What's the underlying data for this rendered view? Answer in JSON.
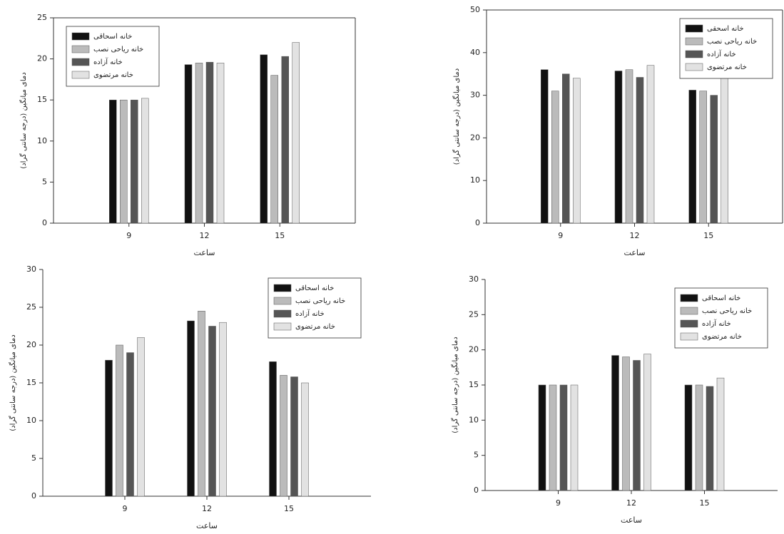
{
  "chart_data": [
    {
      "type": "bar",
      "categories": [
        "9",
        "12",
        "15"
      ],
      "series": [
        {
          "name": "خانه اسحاقی",
          "color": "#111111",
          "values": [
            15,
            19.3,
            20.5
          ]
        },
        {
          "name": "خانه ریاحی نصب",
          "color": "#bbbbbb",
          "values": [
            15,
            19.5,
            18
          ]
        },
        {
          "name": "خانه آزاده",
          "color": "#555555",
          "values": [
            15,
            19.6,
            20.3
          ]
        },
        {
          "name": "خانه مرتضوی",
          "color": "#e2e2e2",
          "values": [
            15.2,
            19.5,
            22
          ]
        }
      ],
      "ylim": [
        0,
        25
      ],
      "yticks": [
        0,
        5,
        10,
        15,
        20,
        25
      ],
      "xlabel": "ساعت",
      "ylabel": "دمای میانگین (درجه سانتی گراد)",
      "legend": "upper left"
    },
    {
      "type": "bar",
      "categories": [
        "9",
        "12",
        "15"
      ],
      "series": [
        {
          "name": "خانه اسحقی",
          "color": "#111111",
          "values": [
            36,
            35.7,
            31.2
          ]
        },
        {
          "name": "خانه ریاحی نصب",
          "color": "#bbbbbb",
          "values": [
            31,
            36,
            31
          ]
        },
        {
          "name": "خانه آزاده",
          "color": "#555555",
          "values": [
            35,
            34.2,
            30
          ]
        },
        {
          "name": "خانه مرتضوی",
          "color": "#e2e2e2",
          "values": [
            34,
            37,
            34
          ]
        }
      ],
      "ylim": [
        0,
        50
      ],
      "yticks": [
        0,
        10,
        20,
        30,
        40,
        50
      ],
      "xlabel": "ساعت",
      "ylabel": "دمای میانگین (درجه سانتی گراد)",
      "legend": "upper right"
    },
    {
      "type": "bar",
      "categories": [
        "9",
        "12",
        "15"
      ],
      "series": [
        {
          "name": "خانه اسحاقی",
          "color": "#111111",
          "values": [
            18,
            23.2,
            17.8
          ]
        },
        {
          "name": "خانه ریاحی نصب",
          "color": "#bbbbbb",
          "values": [
            20,
            24.5,
            16
          ]
        },
        {
          "name": "خانه آزاده",
          "color": "#555555",
          "values": [
            19,
            22.5,
            15.8
          ]
        },
        {
          "name": "خانه مرتضوی",
          "color": "#e2e2e2",
          "values": [
            21,
            23,
            15
          ]
        }
      ],
      "ylim": [
        0,
        30
      ],
      "yticks": [
        0,
        5,
        10,
        15,
        20,
        25,
        30
      ],
      "xlabel": "ساعت",
      "ylabel": "دمای میانگین (درجه سانتی گراد)",
      "legend": "upper right"
    },
    {
      "type": "bar",
      "categories": [
        "9",
        "12",
        "15"
      ],
      "series": [
        {
          "name": "خانه اسحاقی",
          "color": "#111111",
          "values": [
            15,
            19.2,
            15
          ]
        },
        {
          "name": "خانه ریاحی نصب",
          "color": "#bbbbbb",
          "values": [
            15,
            19,
            15
          ]
        },
        {
          "name": "خانه آزاده",
          "color": "#555555",
          "values": [
            15,
            18.5,
            14.8
          ]
        },
        {
          "name": "خانه مرتضوی",
          "color": "#e2e2e2",
          "values": [
            15,
            19.4,
            16
          ]
        }
      ],
      "ylim": [
        0,
        30
      ],
      "yticks": [
        0,
        5,
        10,
        15,
        20,
        25,
        30
      ],
      "xlabel": "ساعت",
      "ylabel": "دمای میانگین (درجه سانتی گراد)",
      "legend": "upper right"
    }
  ]
}
